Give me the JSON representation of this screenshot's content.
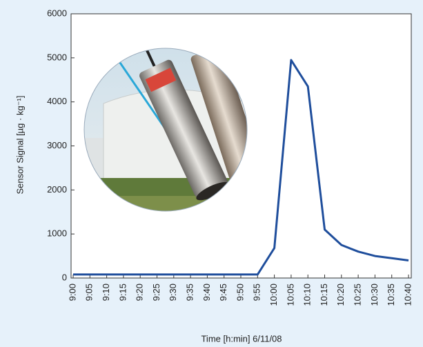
{
  "chart_data": {
    "type": "line",
    "y_label": "Sensor Signal [µg · kg⁻¹]",
    "x_label": "Time [h:min] 6/11/08",
    "categories": [
      "9:00",
      "9:05",
      "9:10",
      "9:15",
      "9:20",
      "9:25",
      "9:30",
      "9:35",
      "9:40",
      "9:45",
      "9:50",
      "9:55",
      "10:00",
      "10:05",
      "10:10",
      "10:15",
      "10:20",
      "10:25",
      "10:30",
      "10:35",
      "10:40"
    ],
    "values": [
      80,
      80,
      80,
      80,
      80,
      80,
      80,
      80,
      80,
      80,
      80,
      80,
      680,
      4950,
      4350,
      1100,
      750,
      600,
      500,
      450,
      400
    ],
    "color": "#1f4e9c",
    "ylim": [
      0,
      6000
    ],
    "yticks": [
      0,
      1000,
      2000,
      3000,
      4000,
      5000,
      6000
    ],
    "grid": false
  }
}
